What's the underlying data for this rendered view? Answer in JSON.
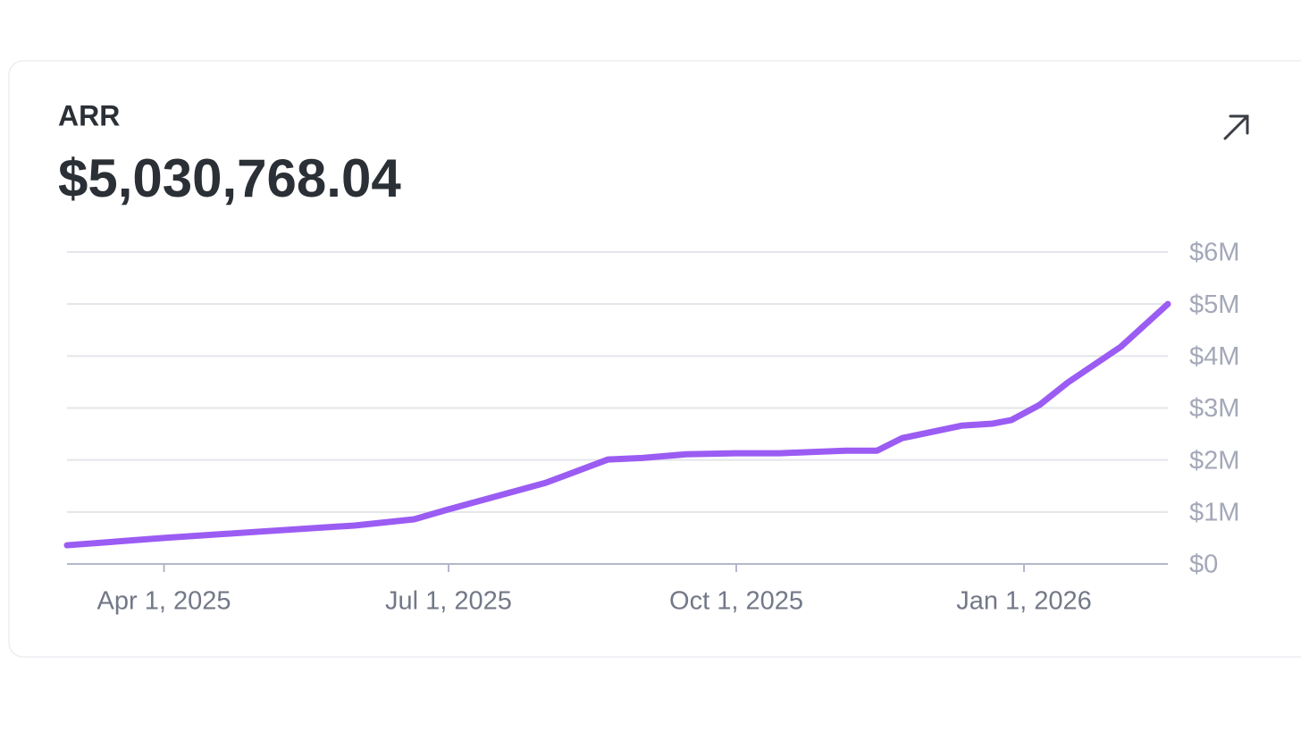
{
  "chart_data": {
    "type": "line",
    "title": "ARR",
    "subtitle": "$5,030,768.04",
    "x": [
      "2025-03-01",
      "2025-04-01",
      "2025-05-01",
      "2025-06-01",
      "2025-06-20",
      "2025-07-01",
      "2025-08-01",
      "2025-08-21",
      "2025-09-01",
      "2025-09-15",
      "2025-10-01",
      "2025-10-15",
      "2025-11-05",
      "2025-11-15",
      "2025-11-23",
      "2025-12-12",
      "2025-12-22",
      "2025-12-28",
      "2026-01-06",
      "2026-01-15",
      "2026-02-01",
      "2026-02-16"
    ],
    "series": [
      {
        "name": "ARR",
        "color": "#9b5cf3",
        "values": [
          360000,
          500000,
          620000,
          740000,
          860000,
          1050000,
          1560000,
          2010000,
          2040000,
          2110000,
          2130000,
          2130000,
          2180000,
          2180000,
          2420000,
          2660000,
          2700000,
          2770000,
          3060000,
          3490000,
          4180000,
          5000000
        ]
      }
    ],
    "xlim": [
      "2025-03-01",
      "2026-02-16"
    ],
    "xticks": [
      {
        "value": "2025-04-01",
        "label": "Apr 1, 2025"
      },
      {
        "value": "2025-07-01",
        "label": "Jul 1, 2025"
      },
      {
        "value": "2025-10-01",
        "label": "Oct 1, 2025"
      },
      {
        "value": "2026-01-01",
        "label": "Jan 1, 2026"
      }
    ],
    "ylim": [
      0,
      6000000
    ],
    "yticks": [
      {
        "value": 0,
        "label": "$0"
      },
      {
        "value": 1000000,
        "label": "$1M"
      },
      {
        "value": 2000000,
        "label": "$2M"
      },
      {
        "value": 3000000,
        "label": "$3M"
      },
      {
        "value": 4000000,
        "label": "$4M"
      },
      {
        "value": 5000000,
        "label": "$5M"
      },
      {
        "value": 6000000,
        "label": "$6M"
      }
    ],
    "grid": true
  }
}
